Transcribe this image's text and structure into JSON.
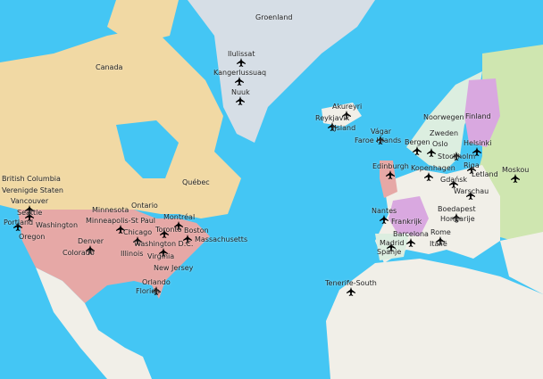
{
  "map": {
    "colors": {
      "ocean": "#44c6f4",
      "greenland": "#d6dee6",
      "canada": "#f1d9a4",
      "usa": "#e6a8a6",
      "land": "#f1efe8",
      "scandinavia": "#dceee0",
      "finland": "#d9a8e0",
      "russia": "#cfe6b0"
    },
    "regions": [
      "Groenland",
      "Canada",
      "Verenigde Staten",
      "British Columbia",
      "Ontario",
      "Québec",
      "Noorwegen",
      "Finland",
      "Zweden",
      "Letland",
      "IJsland",
      "Faroe Islands",
      "Frankrijk",
      "Spanje",
      "Italië",
      "Hongarije",
      "Washington",
      "Oregon",
      "Minnesota",
      "Illinois",
      "Colorado",
      "Florida",
      "Virginia",
      "New Jersey",
      "Massachusetts"
    ],
    "places": [
      "Ilulissat",
      "Kangerlussuaq",
      "Nuuk",
      "Akureyri",
      "Reykjavík",
      "Vágar",
      "Bergen",
      "Oslo",
      "Stockholm",
      "Helsinki",
      "Riga",
      "Moskou",
      "Edinburgh",
      "Kopenhagen",
      "Gdańsk",
      "Warschau",
      "Nantes",
      "Boedapest",
      "Barcelona",
      "Rome",
      "Madrid",
      "Tenerife-South",
      "Vancouver",
      "Seattle",
      "Portland",
      "Minneapolis-St Paul",
      "Chicago",
      "Denver",
      "Toronto",
      "Montréal",
      "Boston",
      "Washington D.C.",
      "Orlando"
    ],
    "marker_icon": "airplane-icon"
  }
}
